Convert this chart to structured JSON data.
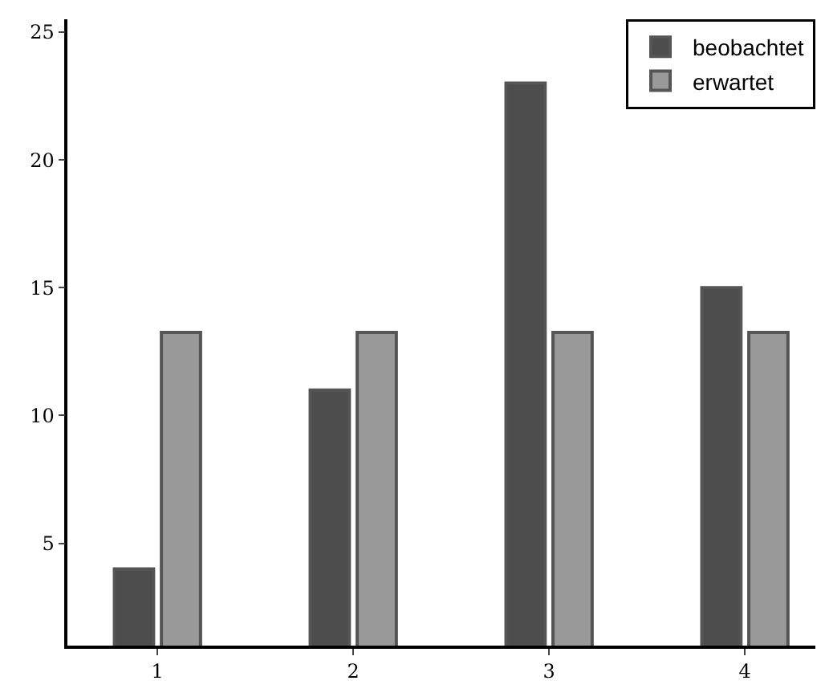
{
  "chart_data": {
    "type": "bar",
    "x": [
      1,
      2,
      3,
      4
    ],
    "series": [
      {
        "name": "beobachtet",
        "color": "#4d4d4d",
        "values": [
          4,
          11,
          23,
          15
        ]
      },
      {
        "name": "erwartet",
        "color": "#999999",
        "values": [
          13.25,
          13.25,
          13.25,
          13.25
        ]
      }
    ],
    "xlim": [
      0.54,
      4.36
    ],
    "xticks": [
      1,
      2,
      3,
      4
    ],
    "ylim": [
      1,
      25.5
    ],
    "yticks": [
      5,
      10,
      15,
      20,
      25
    ],
    "legend": "top right"
  }
}
